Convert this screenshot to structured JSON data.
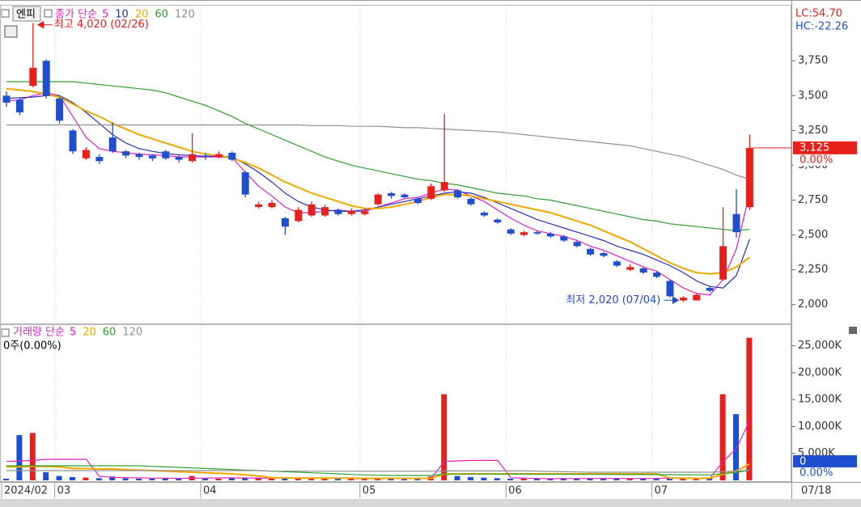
{
  "header": {
    "stock": "엔피",
    "price_legend": "종가 단순",
    "volume_legend": "거래량 단순",
    "volume_info": "0주(0.00%)",
    "lc": "LC:54.70",
    "hc": "HC:-22.26",
    "current_date": "07/18"
  },
  "chart_data": [
    {
      "type": "candlestick",
      "categories": [
        "2024/02",
        null,
        null,
        null,
        "03",
        null,
        null,
        null,
        null,
        null,
        null,
        null,
        null,
        null,
        null,
        "04",
        null,
        null,
        null,
        null,
        null,
        null,
        null,
        null,
        null,
        null,
        null,
        "05",
        null,
        null,
        null,
        null,
        null,
        null,
        null,
        null,
        null,
        null,
        "06",
        null,
        null,
        null,
        null,
        null,
        null,
        null,
        null,
        null,
        null,
        "07",
        null,
        null,
        null,
        null,
        null,
        null,
        null
      ],
      "open": [
        3500,
        3470,
        3570,
        3750,
        3480,
        3250,
        3050,
        3060,
        3200,
        3100,
        3080,
        3070,
        3100,
        3060,
        3030,
        3070,
        3060,
        3090,
        2950,
        2700,
        2700,
        2620,
        2600,
        2640,
        2640,
        2680,
        2650,
        2650,
        2720,
        2800,
        2790,
        2760,
        2760,
        2820,
        2820,
        2760,
        2660,
        2610,
        2540,
        2500,
        2520,
        2510,
        2490,
        2450,
        2400,
        2370,
        2310,
        2250,
        2260,
        2230,
        2170,
        2030,
        2030,
        2120,
        2180,
        2650,
        2700
      ],
      "high": [
        3530,
        3480,
        4020,
        3760,
        3490,
        3260,
        3130,
        3080,
        3310,
        3110,
        3090,
        3080,
        3110,
        3070,
        3230,
        3090,
        3100,
        3100,
        2960,
        2740,
        2750,
        2630,
        2700,
        2740,
        2720,
        2690,
        2690,
        2690,
        2800,
        2810,
        2800,
        2770,
        2870,
        3370,
        2830,
        2770,
        2670,
        2620,
        2550,
        2530,
        2530,
        2520,
        2500,
        2460,
        2410,
        2380,
        2320,
        2290,
        2270,
        2240,
        2180,
        2060,
        2080,
        2130,
        2700,
        2830,
        3220
      ],
      "low": [
        3420,
        3360,
        3560,
        3480,
        3300,
        3080,
        3040,
        3010,
        3090,
        3050,
        3040,
        3030,
        3040,
        3020,
        3020,
        3040,
        3050,
        3030,
        2770,
        2690,
        2690,
        2500,
        2590,
        2630,
        2630,
        2640,
        2640,
        2640,
        2710,
        2760,
        2760,
        2720,
        2750,
        2810,
        2760,
        2710,
        2630,
        2580,
        2500,
        2490,
        2500,
        2480,
        2450,
        2410,
        2350,
        2340,
        2270,
        2240,
        2220,
        2190,
        2050,
        2020,
        2030,
        2090,
        2170,
        2480,
        2680
      ],
      "close": [
        3450,
        3380,
        3700,
        3500,
        3320,
        3100,
        3110,
        3030,
        3100,
        3070,
        3060,
        3050,
        3050,
        3040,
        3080,
        3060,
        3080,
        3040,
        2790,
        2720,
        2730,
        2560,
        2680,
        2720,
        2700,
        2650,
        2670,
        2670,
        2790,
        2780,
        2770,
        2730,
        2850,
        2880,
        2770,
        2720,
        2640,
        2590,
        2510,
        2520,
        2510,
        2490,
        2460,
        2420,
        2360,
        2350,
        2280,
        2270,
        2230,
        2200,
        2060,
        2050,
        2070,
        2100,
        2420,
        2520,
        3125
      ],
      "up_color": "#e8201c",
      "down_color": "#1f4fcf",
      "series": [
        {
          "name": "5",
          "color": "#e020c0",
          "values": [
            3460,
            3470,
            3500,
            3520,
            3500,
            3350,
            3200,
            3120,
            3100,
            3090,
            3080,
            3075,
            3070,
            3060,
            3060,
            3060,
            3060,
            3055,
            2950,
            2850,
            2780,
            2700,
            2660,
            2660,
            2670,
            2680,
            2670,
            2670,
            2700,
            2730,
            2760,
            2770,
            2800,
            2830,
            2820,
            2780,
            2740,
            2680,
            2620,
            2570,
            2530,
            2510,
            2490,
            2460,
            2420,
            2390,
            2350,
            2310,
            2270,
            2240,
            2180,
            2120,
            2080,
            2070,
            2180,
            2400,
            2800
          ]
        },
        {
          "name": "10",
          "color": "#2830b8",
          "values": [
            3480,
            3485,
            3490,
            3500,
            3500,
            3450,
            3380,
            3300,
            3220,
            3160,
            3120,
            3100,
            3085,
            3075,
            3070,
            3065,
            3065,
            3060,
            3010,
            2950,
            2880,
            2800,
            2740,
            2700,
            2680,
            2670,
            2670,
            2680,
            2700,
            2720,
            2740,
            2760,
            2780,
            2800,
            2810,
            2800,
            2770,
            2730,
            2690,
            2650,
            2610,
            2580,
            2550,
            2520,
            2490,
            2460,
            2420,
            2390,
            2360,
            2320,
            2280,
            2230,
            2170,
            2130,
            2120,
            2210,
            2470
          ]
        },
        {
          "name": "20",
          "color": "#f0a800",
          "values": [
            3550,
            3540,
            3530,
            3510,
            3490,
            3440,
            3390,
            3350,
            3300,
            3260,
            3220,
            3190,
            3160,
            3130,
            3100,
            3080,
            3070,
            3050,
            3020,
            2980,
            2930,
            2880,
            2840,
            2800,
            2770,
            2740,
            2710,
            2690,
            2690,
            2700,
            2720,
            2740,
            2770,
            2790,
            2790,
            2780,
            2760,
            2740,
            2720,
            2700,
            2680,
            2660,
            2630,
            2600,
            2570,
            2530,
            2490,
            2450,
            2400,
            2350,
            2300,
            2260,
            2230,
            2220,
            2230,
            2270,
            2340
          ]
        },
        {
          "name": "60",
          "color": "#2fa030",
          "values": [
            3600,
            3600,
            3600,
            3600,
            3600,
            3600,
            3590,
            3580,
            3570,
            3560,
            3550,
            3540,
            3520,
            3490,
            3460,
            3430,
            3390,
            3350,
            3300,
            3260,
            3220,
            3180,
            3140,
            3100,
            3060,
            3030,
            3000,
            2980,
            2960,
            2940,
            2920,
            2900,
            2890,
            2870,
            2860,
            2840,
            2820,
            2800,
            2790,
            2780,
            2760,
            2750,
            2730,
            2710,
            2690,
            2670,
            2650,
            2630,
            2610,
            2600,
            2580,
            2570,
            2560,
            2550,
            2540,
            2530,
            2540
          ]
        },
        {
          "name": "120",
          "color": "#909090",
          "values": [
            3290,
            3290,
            3290,
            3290,
            3290,
            3290,
            3290,
            3290,
            3290,
            3290,
            3290,
            3290,
            3290,
            3290,
            3290,
            3290,
            3290,
            3290,
            3290,
            3290,
            3290,
            3290,
            3290,
            3285,
            3285,
            3285,
            3280,
            3280,
            3280,
            3275,
            3270,
            3270,
            3265,
            3260,
            3255,
            3250,
            3245,
            3240,
            3230,
            3220,
            3210,
            3200,
            3190,
            3180,
            3170,
            3160,
            3150,
            3140,
            3120,
            3100,
            3080,
            3060,
            3030,
            3000,
            2970,
            2930,
            2900
          ]
        }
      ],
      "ylim": [
        1865,
        4140
      ],
      "yticks": [
        {
          "value": 2000,
          "label": "2,000"
        },
        {
          "value": 2250,
          "label": "2,250"
        },
        {
          "value": 2500,
          "label": "2,500"
        },
        {
          "value": 2750,
          "label": "2,750"
        },
        {
          "value": 3000,
          "label": "3,000"
        },
        {
          "value": 3250,
          "label": "3,250"
        },
        {
          "value": 3500,
          "label": "3,500"
        },
        {
          "value": 3750,
          "label": "3,750"
        }
      ],
      "high_label": "최고 4,020 (02/26)",
      "low_label": "최저 2,020 (07/04)",
      "last_price_label": "3,125",
      "last_change": "0.00%"
    },
    {
      "type": "bar",
      "values": [
        300,
        8400,
        8800,
        1500,
        800,
        600,
        500,
        400,
        700,
        400,
        300,
        300,
        400,
        300,
        800,
        400,
        300,
        400,
        500,
        400,
        300,
        600,
        400,
        400,
        300,
        300,
        300,
        300,
        400,
        300,
        300,
        300,
        700,
        16000,
        800,
        600,
        500,
        400,
        300,
        300,
        300,
        300,
        400,
        300,
        400,
        300,
        400,
        300,
        300,
        400,
        500,
        300,
        300,
        400,
        16000,
        12300,
        26500
      ],
      "series": [
        {
          "name": "5",
          "color": "#e020c0",
          "values": [
            3500,
            3600,
            3700,
            3900,
            3900,
            3900,
            3900,
            750,
            550,
            500,
            450,
            400,
            400,
            350,
            400,
            400,
            450,
            450,
            450,
            400,
            400,
            450,
            450,
            450,
            400,
            400,
            350,
            300,
            330,
            330,
            330,
            330,
            400,
            3500,
            3600,
            3700,
            3700,
            3700,
            500,
            400,
            350,
            300,
            330,
            330,
            350,
            350,
            350,
            350,
            350,
            350,
            400,
            380,
            380,
            400,
            3500,
            5900,
            11100
          ]
        },
        {
          "name": "20",
          "color": "#f0a800",
          "values": [
            2500,
            2500,
            2600,
            2600,
            2500,
            2200,
            2200,
            2100,
            2100,
            2000,
            1900,
            1800,
            1700,
            1600,
            1500,
            1400,
            1300,
            1200,
            1000,
            800,
            500,
            450,
            420,
            420,
            420,
            400,
            400,
            380,
            370,
            370,
            360,
            360,
            380,
            1150,
            1180,
            1200,
            1200,
            1200,
            1200,
            1200,
            1200,
            1200,
            1200,
            1200,
            1200,
            1200,
            1200,
            1200,
            1200,
            1200,
            400,
            400,
            380,
            380,
            1150,
            1750,
            3050
          ]
        },
        {
          "name": "60",
          "color": "#2fa030",
          "values": [
            2700,
            2700,
            2700,
            2700,
            2700,
            2700,
            2700,
            2700,
            2700,
            2700,
            2700,
            2600,
            2500,
            2400,
            2300,
            2200,
            2100,
            2000,
            1900,
            1800,
            1700,
            1600,
            1500,
            1400,
            1300,
            1200,
            1100,
            1000,
            950,
            900,
            900,
            900,
            900,
            1150,
            1150,
            1150,
            1150,
            1150,
            1150,
            1150,
            1140,
            1130,
            1120,
            1110,
            1100,
            1090,
            1080,
            1070,
            1060,
            1050,
            1040,
            1030,
            1020,
            1010,
            1250,
            1450,
            1900
          ]
        },
        {
          "name": "120",
          "color": "#909090",
          "values": [
            1800,
            1800,
            1800,
            1800,
            1800,
            1800,
            1800,
            1800,
            1800,
            1800,
            1800,
            1800,
            1800,
            1800,
            1800,
            1800,
            1800,
            1800,
            1800,
            1800,
            1700,
            1700,
            1700,
            1700,
            1700,
            1700,
            1700,
            1700,
            1700,
            1700,
            1700,
            1700,
            1700,
            1750,
            1750,
            1750,
            1750,
            1750,
            1750,
            1750,
            1700,
            1650,
            1600,
            1550,
            1500,
            1500,
            1500,
            1500,
            1500,
            1500,
            1500,
            1500,
            1500,
            1500,
            1600,
            1700,
            1900
          ]
        }
      ],
      "ylim": [
        0,
        28400
      ],
      "yticks": [
        {
          "value": 5000,
          "label": "5,000K"
        },
        {
          "value": 10000,
          "label": "10,000K"
        },
        {
          "value": 15000,
          "label": "15,000K"
        },
        {
          "value": 20000,
          "label": "20,000K"
        },
        {
          "value": 25000,
          "label": "25,000K"
        }
      ],
      "last_volume_text": "0",
      "last_change": "0.00%"
    }
  ]
}
